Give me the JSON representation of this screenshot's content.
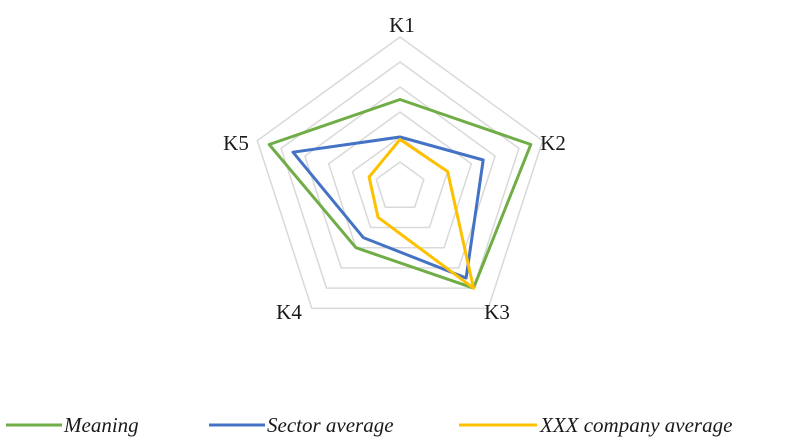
{
  "chart_data": {
    "type": "radar",
    "title": "",
    "categories": [
      "K1",
      "K2",
      "K3",
      "K4",
      "K5"
    ],
    "scale": {
      "min": 0,
      "max": 6,
      "rings": 6
    },
    "grid": true,
    "legend_position": "bottom",
    "series": [
      {
        "name": "Meaning",
        "color": "#70AD47",
        "values": [
          3.5,
          5.5,
          5.0,
          3.0,
          5.5
        ]
      },
      {
        "name": "Sector average",
        "color": "#4472C4",
        "values": [
          2.0,
          3.5,
          4.5,
          2.5,
          4.5
        ]
      },
      {
        "name": "XXX company average",
        "color": "#FFC000",
        "values": [
          1.9,
          2.0,
          5.0,
          1.5,
          1.3
        ]
      }
    ]
  }
}
